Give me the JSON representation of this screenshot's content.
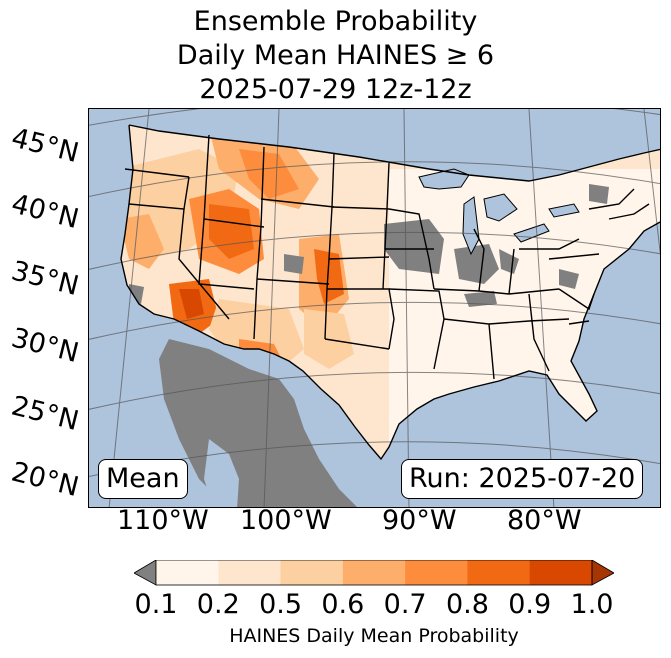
{
  "title": {
    "line1": "Ensemble Probability",
    "line2": "Daily Mean HAINES ≥ 6",
    "line3": "2025-07-29 12z-12z"
  },
  "map": {
    "lat_labels": [
      "45°N",
      "40°N",
      "35°N",
      "30°N",
      "25°N",
      "20°N"
    ],
    "lon_labels": [
      "110°W",
      "100°W",
      "90°W",
      "80°W"
    ],
    "stat_label": "Mean",
    "run_label": "Run: 2025-07-20",
    "colors": {
      "ocean": "#aec3dc",
      "no_data": "#808080",
      "bins": [
        "#fff5eb",
        "#fee6ce",
        "#fdd0a2",
        "#fdae6b",
        "#fd8d3c",
        "#f16913",
        "#d94801",
        "#a63603"
      ]
    }
  },
  "colorbar": {
    "ticks": [
      "0.1",
      "0.2",
      "0.5",
      "0.6",
      "0.7",
      "0.8",
      "0.9",
      "1.0"
    ],
    "label": "HAINES Daily Mean Probability",
    "colors": [
      "#fff5eb",
      "#fee6ce",
      "#fdd0a2",
      "#fdae6b",
      "#fd8d3c",
      "#f16913",
      "#d94801"
    ],
    "under_color": "#808080",
    "over_color": "#a63603"
  }
}
